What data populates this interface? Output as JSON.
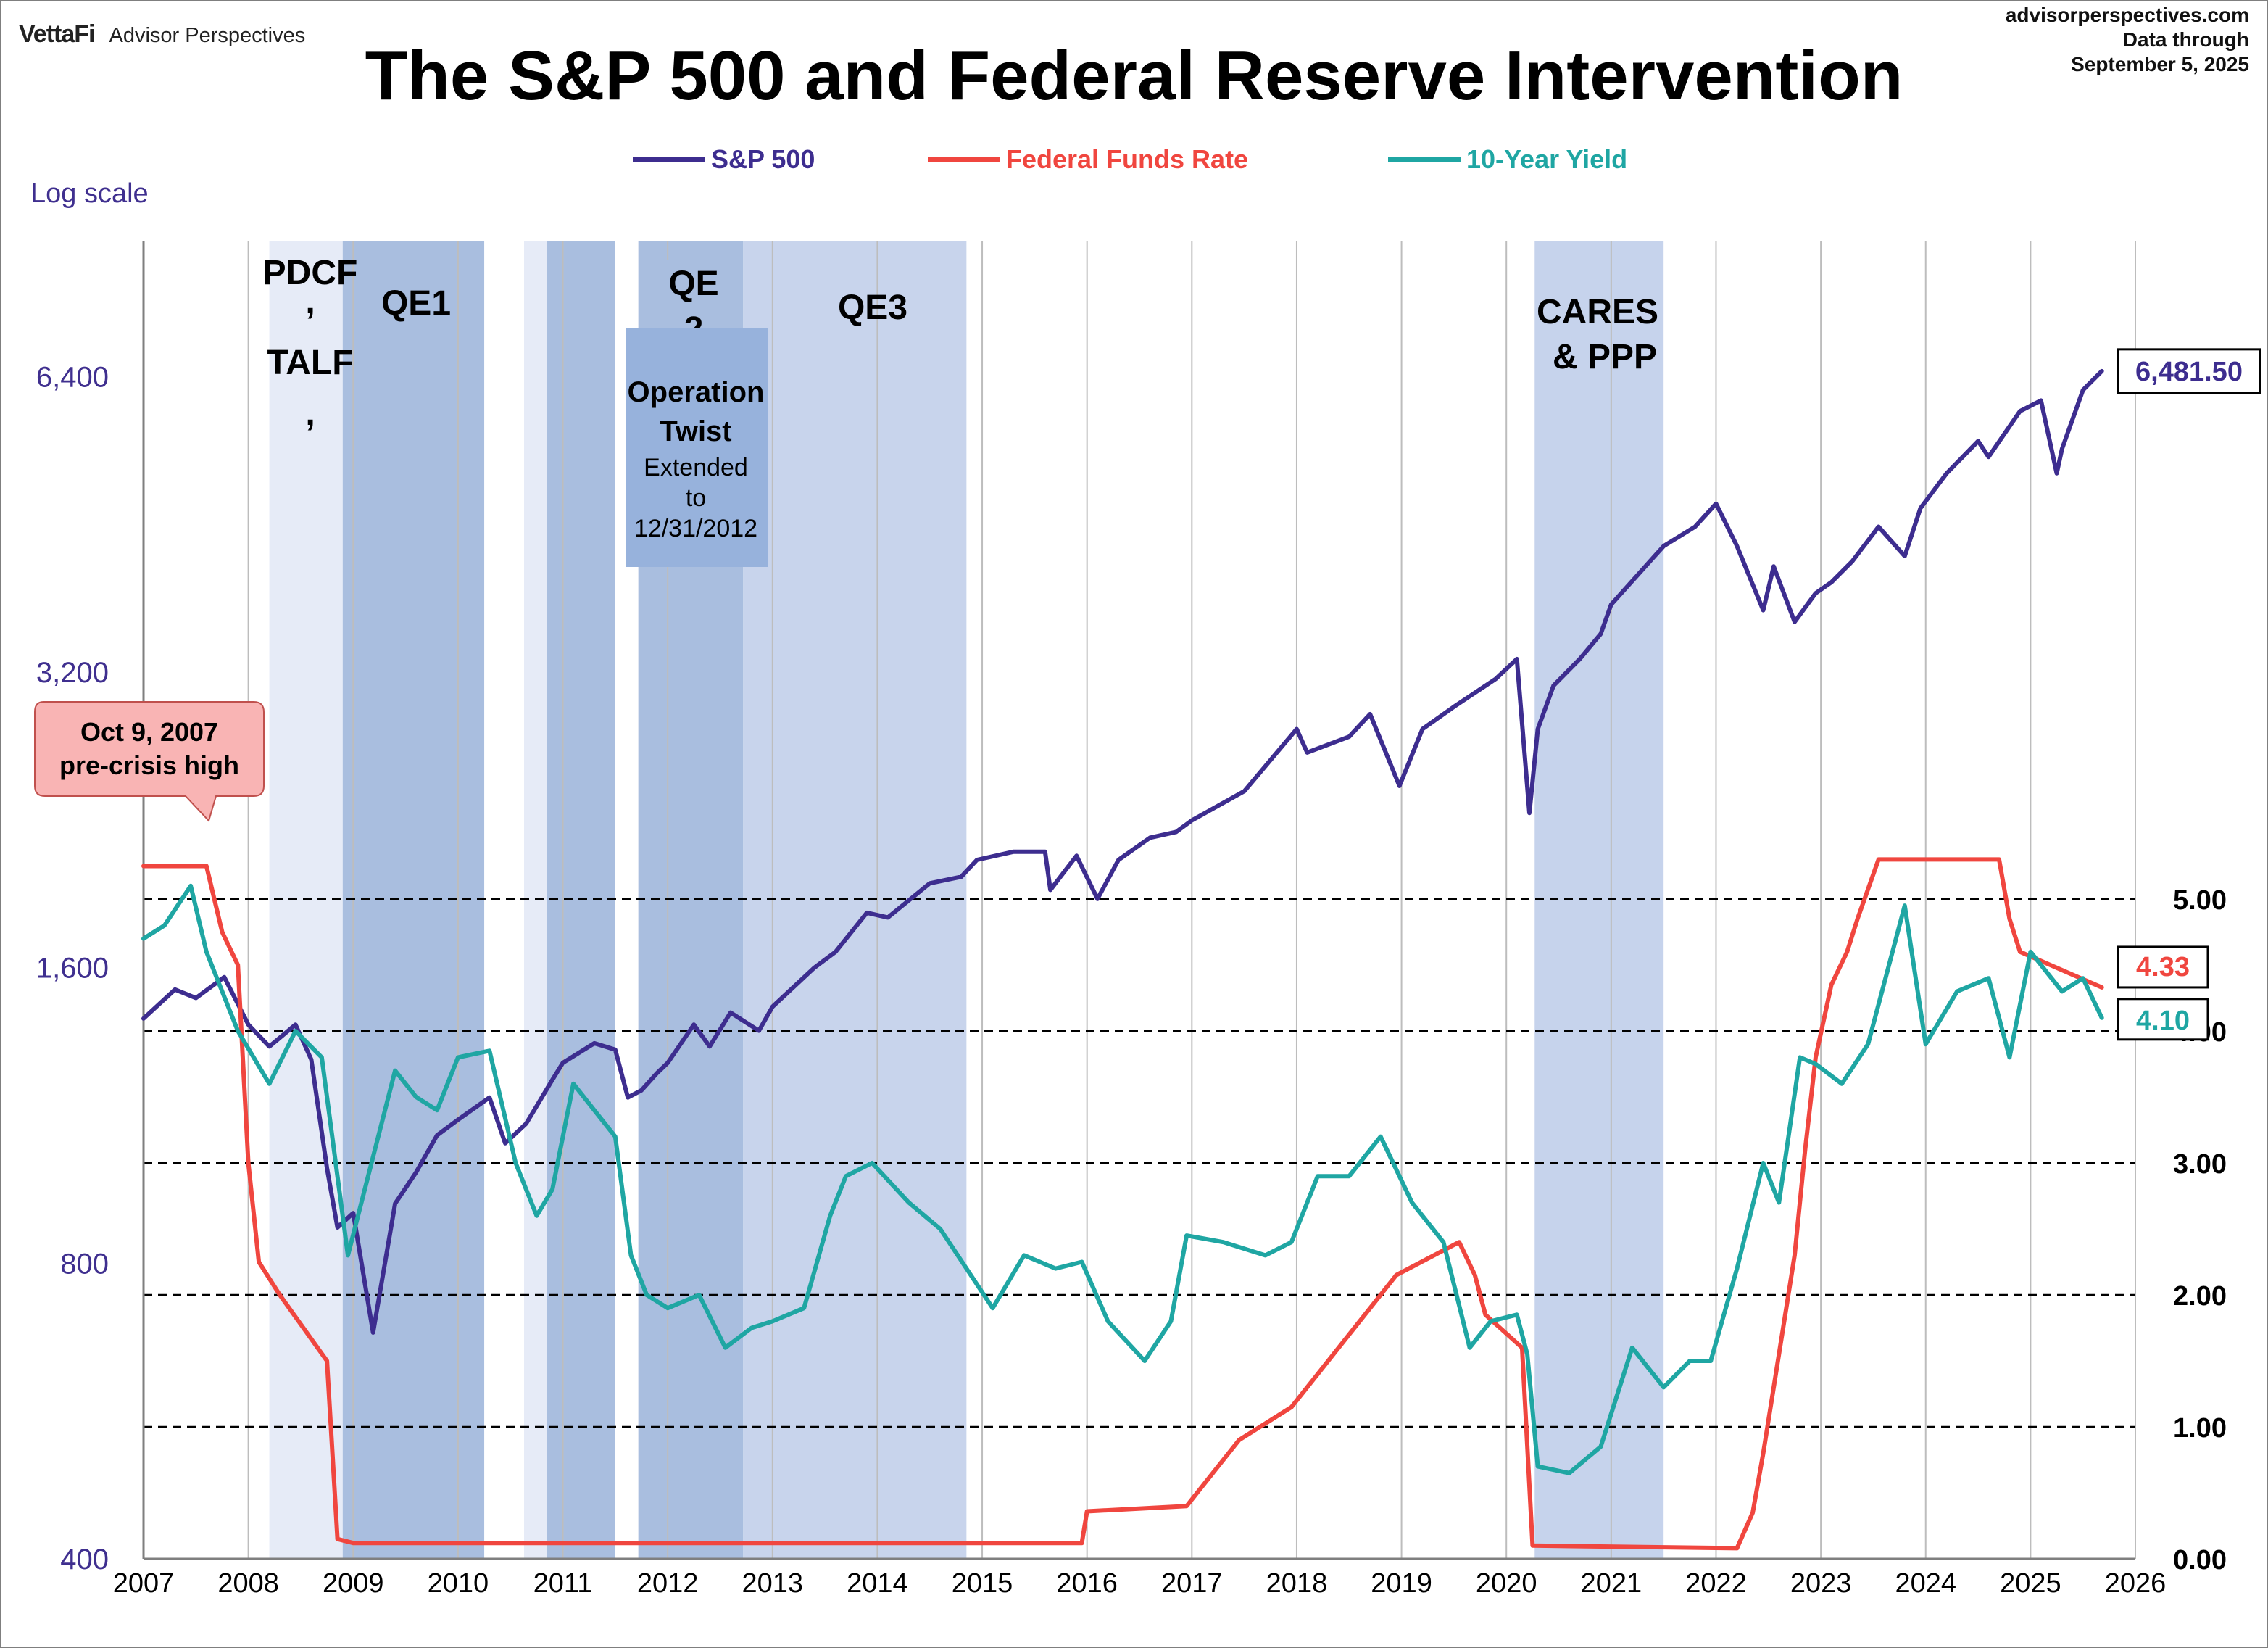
{
  "brand": {
    "logo": "VettaFi",
    "name": "Advisor Perspectives"
  },
  "source": {
    "site": "advisorperspectives.com",
    "line2": "Data through",
    "line3": "September 5, 2025"
  },
  "chart_data": {
    "type": "line",
    "title": "The S&P 500 and Federal Reserve Intervention",
    "left_axis_note": "Log scale",
    "x_ticks": [
      "2007",
      "2008",
      "2009",
      "2010",
      "2011",
      "2012",
      "2013",
      "2014",
      "2015",
      "2016",
      "2017",
      "2018",
      "2019",
      "2020",
      "2021",
      "2022",
      "2023",
      "2024",
      "2025",
      "2026"
    ],
    "xlim": [
      2007,
      2026
    ],
    "y_left": {
      "scale": "log",
      "ticks": [
        "400",
        "800",
        "1,600",
        "3,200",
        "6,400"
      ],
      "tick_values": [
        400,
        800,
        1600,
        3200,
        6400
      ],
      "ylim": [
        400,
        8800
      ]
    },
    "y_right": {
      "ticks": [
        "0.00",
        "1.00",
        "2.00",
        "3.00",
        "4.00",
        "5.00"
      ],
      "tick_values": [
        0,
        1,
        2,
        3,
        4,
        5
      ],
      "ylim": [
        0,
        5
      ]
    },
    "grid": "vertical lines at each year, dashed horizontal lines at right-axis values",
    "legend_position": "top-center",
    "legend": [
      {
        "label": "S&P 500",
        "color": "#3d2d8f"
      },
      {
        "label": "Federal Funds Rate",
        "color": "#f0463f"
      },
      {
        "label": "10-Year Yield",
        "color": "#1fa6a3"
      }
    ],
    "shaded_periods": [
      {
        "label": "PDCF, TALF,",
        "start": 2008.2,
        "end": 2008.9
      },
      {
        "label": "QE1",
        "start": 2008.9,
        "end": 2010.25
      },
      {
        "label": "",
        "start": 2010.63,
        "end": 2010.85
      },
      {
        "label": "QE2",
        "start": 2010.85,
        "end": 2011.5
      },
      {
        "label": "Operation Twist Extended to 12/31/2012",
        "start": 2011.72,
        "end": 2012.72
      },
      {
        "label": "QE3",
        "start": 2012.72,
        "end": 2014.85
      },
      {
        "label": "CARES & PPP",
        "start": 2020.27,
        "end": 2021.5
      }
    ],
    "annotations": [
      {
        "label": "Oct 9, 2007 pre-crisis high",
        "x": 2007.77,
        "value": 1565
      }
    ],
    "end_labels": {
      "sp500": "6,481.50",
      "fed_funds": "4.33",
      "ten_year": "4.10"
    },
    "series": [
      {
        "name": "S&P 500",
        "axis": "left",
        "x": [
          2007.0,
          2007.3,
          2007.5,
          2007.77,
          2008.0,
          2008.2,
          2008.45,
          2008.6,
          2008.75,
          2008.85,
          2009.0,
          2009.19,
          2009.4,
          2009.6,
          2009.8,
          2010.0,
          2010.3,
          2010.45,
          2010.65,
          2010.9,
          2011.0,
          2011.3,
          2011.5,
          2011.62,
          2011.75,
          2011.9,
          2012.0,
          2012.25,
          2012.4,
          2012.6,
          2012.87,
          2013.0,
          2013.4,
          2013.6,
          2013.9,
          2014.1,
          2014.5,
          2014.8,
          2014.95,
          2015.3,
          2015.6,
          2015.65,
          2015.9,
          2016.1,
          2016.3,
          2016.6,
          2016.85,
          2017.0,
          2017.5,
          2018.0,
          2018.1,
          2018.5,
          2018.7,
          2018.98,
          2019.2,
          2019.5,
          2019.9,
          2020.1,
          2020.22,
          2020.3,
          2020.45,
          2020.7,
          2020.9,
          2021.0,
          2021.5,
          2021.8,
          2022.0,
          2022.2,
          2022.45,
          2022.55,
          2022.75,
          2022.95,
          2023.1,
          2023.3,
          2023.55,
          2023.8,
          2023.95,
          2024.2,
          2024.5,
          2024.6,
          2024.9,
          2025.1,
          2025.25,
          2025.3,
          2025.5,
          2025.68
        ],
        "values": [
          1420,
          1520,
          1490,
          1565,
          1400,
          1330,
          1400,
          1290,
          1000,
          870,
          900,
          680,
          920,
          990,
          1080,
          1120,
          1180,
          1060,
          1110,
          1230,
          1280,
          1340,
          1320,
          1180,
          1200,
          1250,
          1280,
          1400,
          1330,
          1440,
          1380,
          1460,
          1600,
          1660,
          1820,
          1800,
          1950,
          1980,
          2060,
          2100,
          2100,
          1920,
          2080,
          1880,
          2060,
          2170,
          2200,
          2260,
          2420,
          2800,
          2650,
          2750,
          2900,
          2450,
          2800,
          2950,
          3150,
          3300,
          2300,
          2800,
          3100,
          3300,
          3500,
          3750,
          4300,
          4500,
          4750,
          4300,
          3700,
          4100,
          3600,
          3850,
          3950,
          4150,
          4500,
          4200,
          4700,
          5100,
          5500,
          5300,
          5900,
          6050,
          5100,
          5400,
          6200,
          6481.5
        ]
      },
      {
        "name": "Federal Funds Rate",
        "axis": "right",
        "x": [
          2007.0,
          2007.6,
          2007.75,
          2007.9,
          2008.0,
          2008.1,
          2008.3,
          2008.75,
          2008.85,
          2009.0,
          2015.95,
          2016.0,
          2016.95,
          2017.2,
          2017.45,
          2017.95,
          2018.2,
          2018.45,
          2018.7,
          2018.95,
          2019.55,
          2019.7,
          2019.8,
          2020.15,
          2020.25,
          2022.2,
          2022.35,
          2022.45,
          2022.6,
          2022.75,
          2022.85,
          2022.95,
          2023.1,
          2023.25,
          2023.35,
          2023.55,
          2024.7,
          2024.8,
          2024.9,
          2025.68
        ],
        "values": [
          5.25,
          5.25,
          4.75,
          4.5,
          3.0,
          2.25,
          2.0,
          1.5,
          0.15,
          0.12,
          0.12,
          0.36,
          0.4,
          0.65,
          0.9,
          1.15,
          1.4,
          1.65,
          1.9,
          2.15,
          2.4,
          2.15,
          1.85,
          1.6,
          0.1,
          0.08,
          0.35,
          0.8,
          1.55,
          2.3,
          3.1,
          3.8,
          4.35,
          4.6,
          4.85,
          5.3,
          5.3,
          4.85,
          4.6,
          4.33
        ]
      },
      {
        "name": "10-Year Yield",
        "axis": "right",
        "x": [
          2007.0,
          2007.2,
          2007.45,
          2007.6,
          2007.9,
          2008.2,
          2008.45,
          2008.7,
          2008.95,
          2009.4,
          2009.6,
          2009.8,
          2010.0,
          2010.3,
          2010.55,
          2010.75,
          2010.9,
          2011.1,
          2011.3,
          2011.5,
          2011.65,
          2011.8,
          2012.0,
          2012.3,
          2012.55,
          2012.8,
          2013.0,
          2013.3,
          2013.55,
          2013.7,
          2013.95,
          2014.3,
          2014.6,
          2014.85,
          2015.1,
          2015.4,
          2015.7,
          2015.95,
          2016.2,
          2016.55,
          2016.8,
          2016.95,
          2017.3,
          2017.7,
          2017.95,
          2018.2,
          2018.5,
          2018.8,
          2019.1,
          2019.4,
          2019.65,
          2019.85,
          2020.1,
          2020.2,
          2020.3,
          2020.6,
          2020.9,
          2021.2,
          2021.5,
          2021.75,
          2021.95,
          2022.2,
          2022.45,
          2022.6,
          2022.8,
          2022.95,
          2023.2,
          2023.45,
          2023.8,
          2024.0,
          2024.3,
          2024.6,
          2024.8,
          2025.0,
          2025.3,
          2025.5,
          2025.68
        ],
        "values": [
          4.7,
          4.8,
          5.1,
          4.6,
          4.0,
          3.6,
          4.0,
          3.8,
          2.3,
          3.7,
          3.5,
          3.4,
          3.8,
          3.85,
          3.0,
          2.6,
          2.8,
          3.6,
          3.4,
          3.2,
          2.3,
          2.0,
          1.9,
          2.0,
          1.6,
          1.75,
          1.8,
          1.9,
          2.6,
          2.9,
          3.0,
          2.7,
          2.5,
          2.2,
          1.9,
          2.3,
          2.2,
          2.25,
          1.8,
          1.5,
          1.8,
          2.45,
          2.4,
          2.3,
          2.4,
          2.9,
          2.9,
          3.2,
          2.7,
          2.4,
          1.6,
          1.8,
          1.85,
          1.55,
          0.7,
          0.65,
          0.85,
          1.6,
          1.3,
          1.5,
          1.5,
          2.2,
          3.0,
          2.7,
          3.8,
          3.75,
          3.6,
          3.9,
          4.95,
          3.9,
          4.3,
          4.4,
          3.8,
          4.6,
          4.3,
          4.4,
          4.1
        ]
      }
    ]
  }
}
